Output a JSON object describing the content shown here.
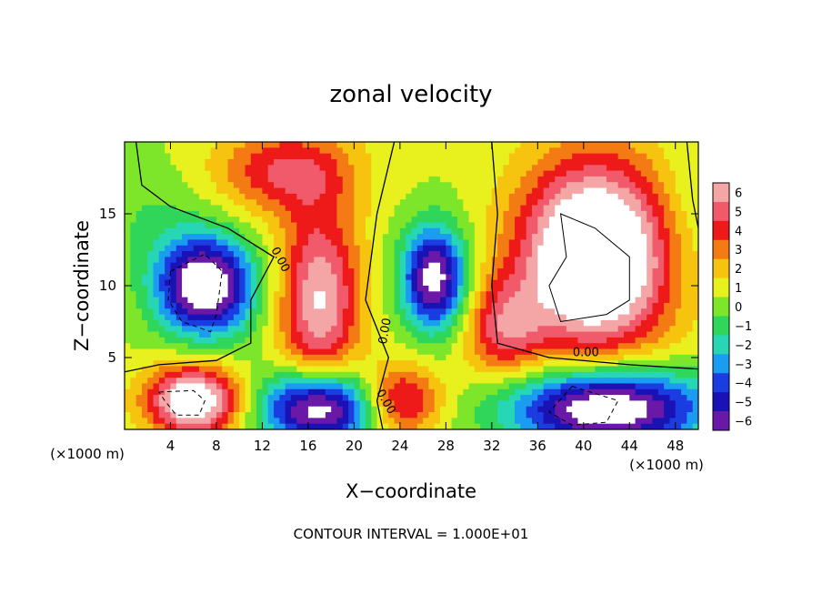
{
  "chart_data": {
    "type": "heatmap",
    "title": "zonal velocity",
    "xlabel": "X−coordinate",
    "ylabel": "Z−coordinate",
    "x_unit_left": "(×1000 m)",
    "x_unit_right": "(×1000 m)",
    "footer": "CONTOUR INTERVAL = 1.000E+01",
    "xlim": [
      0,
      50
    ],
    "ylim": [
      0,
      20
    ],
    "x_ticks": [
      "4",
      "8",
      "12",
      "16",
      "20",
      "24",
      "28",
      "32",
      "36",
      "40",
      "44",
      "48"
    ],
    "y_ticks": [
      "5",
      "10",
      "15"
    ],
    "colorbar": {
      "labels": [
        "6",
        "5",
        "4",
        "3",
        "2",
        "1",
        "0",
        "−1",
        "−2",
        "−3",
        "−4",
        "−5",
        "−6"
      ],
      "colors": [
        "#f4a6a6",
        "#f05a6a",
        "#ee1a1a",
        "#f47a14",
        "#f6c40e",
        "#e8f01e",
        "#7ee62a",
        "#2fd65a",
        "#26d6b4",
        "#1a9cf0",
        "#1a3ce0",
        "#1a12b4",
        "#6a18a8"
      ]
    },
    "contour_labels": [
      "0.00",
      "0.00",
      "0.00",
      "0.00"
    ],
    "features": [
      {
        "x": 7,
        "z": 10,
        "value": -9,
        "spread_x": 4.2,
        "spread_z": 3.4
      },
      {
        "x": 27,
        "z": 10.5,
        "value": -8,
        "spread_x": 2.8,
        "spread_z": 3.6
      },
      {
        "x": 17,
        "z": 1.5,
        "value": -9,
        "spread_x": 5.0,
        "spread_z": 2.6
      },
      {
        "x": 42,
        "z": 1.5,
        "value": -9,
        "spread_x": 8.5,
        "spread_z": 2.8
      },
      {
        "x": 6,
        "z": 2,
        "value": 8,
        "spread_x": 4.0,
        "spread_z": 2.4
      },
      {
        "x": 17,
        "z": 9,
        "value": 6,
        "spread_x": 3.5,
        "spread_z": 6.5
      },
      {
        "x": 14,
        "z": 18,
        "value": 4,
        "spread_x": 6,
        "spread_z": 3
      },
      {
        "x": 41,
        "z": 12,
        "value": 10,
        "spread_x": 6.5,
        "spread_z": 6.5
      },
      {
        "x": 24,
        "z": 2,
        "value": 5,
        "spread_x": 3.5,
        "spread_z": 2.5
      },
      {
        "x": 33,
        "z": 7,
        "value": 4,
        "spread_x": 3.5,
        "spread_z": 3.5
      },
      {
        "x": 2,
        "z": 15,
        "value": -1,
        "spread_x": 5,
        "spread_z": 4
      },
      {
        "x": 49,
        "z": 15,
        "value": -1,
        "spread_x": 3,
        "spread_z": 5
      }
    ]
  }
}
